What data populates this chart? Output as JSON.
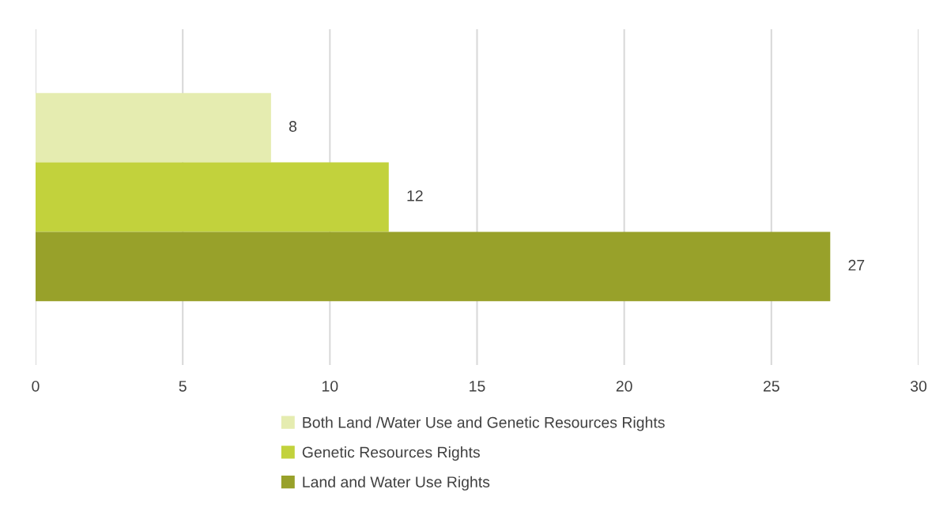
{
  "chart_data": {
    "type": "bar",
    "orientation": "horizontal",
    "categories": [
      null
    ],
    "series": [
      {
        "name": "Both Land /Water Use and Genetic Resources Rights",
        "color": "#e5ecb0",
        "values": [
          8
        ]
      },
      {
        "name": "Genetic Resources Rights",
        "color": "#c2d23c",
        "values": [
          12
        ]
      },
      {
        "name": "Land and Water Use Rights",
        "color": "#98a12a",
        "values": [
          27
        ]
      }
    ],
    "xlim": [
      0,
      30
    ],
    "xticks": [
      0,
      5,
      10,
      15,
      20,
      25,
      30
    ],
    "grid": "x",
    "legend": "bottom",
    "data_labels": true
  }
}
